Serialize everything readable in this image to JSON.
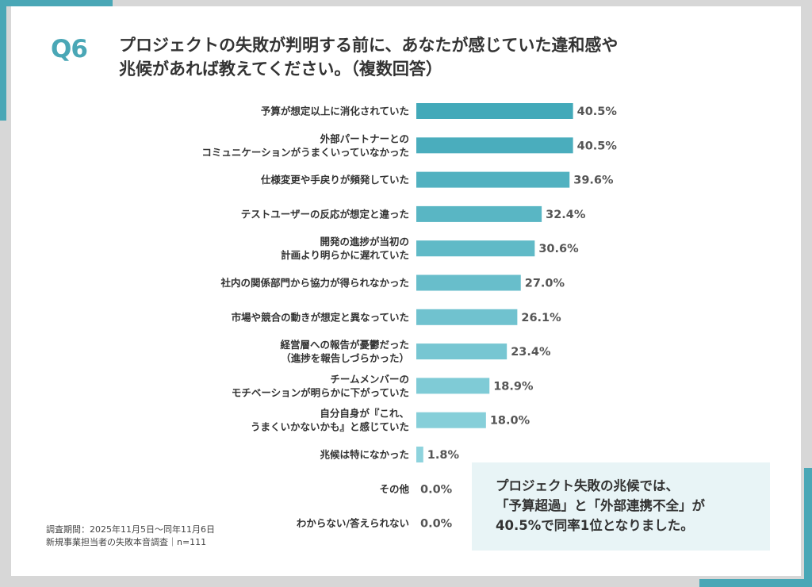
{
  "question": {
    "number": "Q6",
    "line1": "プロジェクトの失敗が判明する前に、あなたが感じていた違和感や",
    "line2": "兆候があれば教えてください。（複数回答）"
  },
  "colors": {
    "accent": "#4aa7b6",
    "bar_dark": "#42a9b9",
    "bar_light": "#8ed3dd",
    "callout_bg": "#e8f4f6"
  },
  "chart_data": {
    "type": "bar",
    "orientation": "horizontal",
    "title": "プロジェクトの失敗が判明する前に、あなたが感じていた違和感や兆候があれば教えてください。（複数回答）",
    "xlim": [
      0,
      100
    ],
    "unit": "%",
    "categories": [
      [
        "予算が想定以上に消化されていた"
      ],
      [
        "外部パートナーとの",
        "コミュニケーションがうまくいっていなかった"
      ],
      [
        "仕様変更や手戻りが頻発していた"
      ],
      [
        "テストユーザーの反応が想定と違った"
      ],
      [
        "開発の進捗が当初の",
        "計画より明らかに遅れていた"
      ],
      [
        "社内の関係部門から協力が得られなかった"
      ],
      [
        "市場や競合の動きが想定と異なっていた"
      ],
      [
        "経営層への報告が憂鬱だった",
        "（進捗を報告しづらかった）"
      ],
      [
        "チームメンバーの",
        "モチベーションが明らかに下がっていた"
      ],
      [
        "自分自身が『これ、",
        "うまくいかないかも』と感じていた"
      ],
      [
        "兆候は特になかった"
      ],
      [
        "その他"
      ],
      [
        "わからない/答えられない"
      ]
    ],
    "values": [
      40.5,
      40.5,
      39.6,
      32.4,
      30.6,
      27.0,
      26.1,
      23.4,
      18.9,
      18.0,
      1.8,
      0.0,
      0.0
    ],
    "value_labels": [
      "40.5%",
      "40.5%",
      "39.6%",
      "32.4%",
      "30.6%",
      "27.0%",
      "26.1%",
      "23.4%",
      "18.9%",
      "18.0%",
      "1.8%",
      "0.0%",
      "0.0%"
    ]
  },
  "callout": {
    "line1": "プロジェクト失敗の兆候では、",
    "line2": "「予算超過」と「外部連携不全」が",
    "line3": "40.5%で同率1位となりました。"
  },
  "footnote": {
    "line1": "調査期間：2025年11月5日～同年11月6日",
    "line2": "新規事業担当者の失敗本音調査｜n=111"
  }
}
